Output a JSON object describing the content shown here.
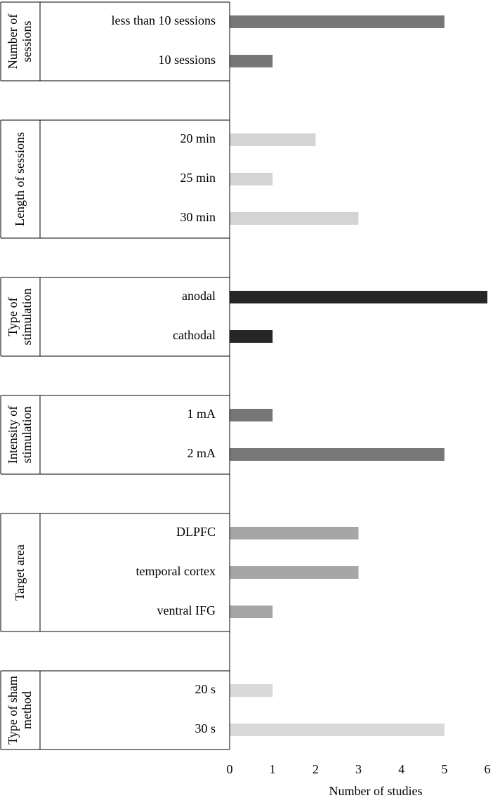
{
  "chart_data": {
    "type": "bar",
    "orientation": "horizontal",
    "x_label": "Number of studies",
    "xlim": [
      0,
      6
    ],
    "xticks": [
      0,
      1,
      2,
      3,
      4,
      5,
      6
    ],
    "groups": [
      {
        "name": "Number of sessions",
        "color": "#777777",
        "categories": [
          "less than 10 sessions",
          "10 sessions"
        ],
        "values": [
          5,
          1
        ]
      },
      {
        "name": "Length of sessions",
        "color": "#d4d4d4",
        "categories": [
          "20 min",
          "25 min",
          "30 min"
        ],
        "values": [
          2,
          1,
          3
        ]
      },
      {
        "name": "Type of stimulation",
        "color": "#262626",
        "categories": [
          "anodal",
          "cathodal"
        ],
        "values": [
          6,
          1
        ]
      },
      {
        "name": "Intensity of stimulation",
        "color": "#777777",
        "categories": [
          "1 mA",
          "2 mA"
        ],
        "values": [
          1,
          5
        ]
      },
      {
        "name": "Target area",
        "color": "#a6a6a6",
        "categories": [
          "DLPFC",
          "temporal cortex",
          "ventral IFG"
        ],
        "values": [
          3,
          3,
          1
        ]
      },
      {
        "name": "Type of sham method",
        "color": "#d9d9d9",
        "categories": [
          "20 s",
          "30 s"
        ],
        "values": [
          1,
          5
        ]
      }
    ]
  }
}
